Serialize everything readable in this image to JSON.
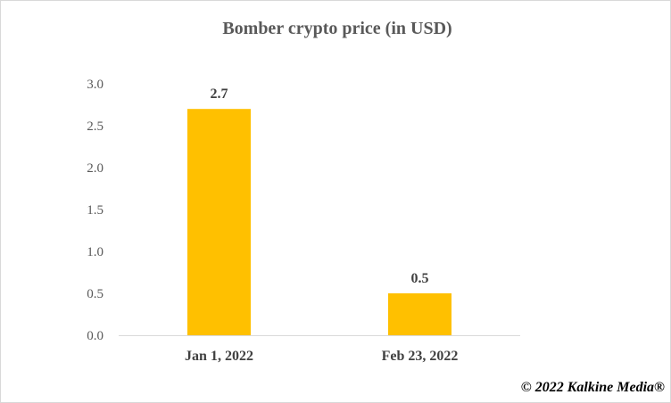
{
  "chart_data": {
    "type": "bar",
    "title": "Bomber crypto price (in USD)",
    "categories": [
      "Jan 1, 2022",
      "Feb 23, 2022"
    ],
    "values": [
      2.7,
      0.5
    ],
    "data_labels": [
      "2.7",
      "0.5"
    ],
    "y_ticks": [
      "0.0",
      "0.5",
      "1.0",
      "1.5",
      "2.0",
      "2.5",
      "3.0"
    ],
    "ylim": [
      0,
      3.0
    ],
    "grid": false,
    "legend": "none",
    "bar_color": "#ffc000"
  },
  "copyright": "© 2022 Kalkine Media®"
}
